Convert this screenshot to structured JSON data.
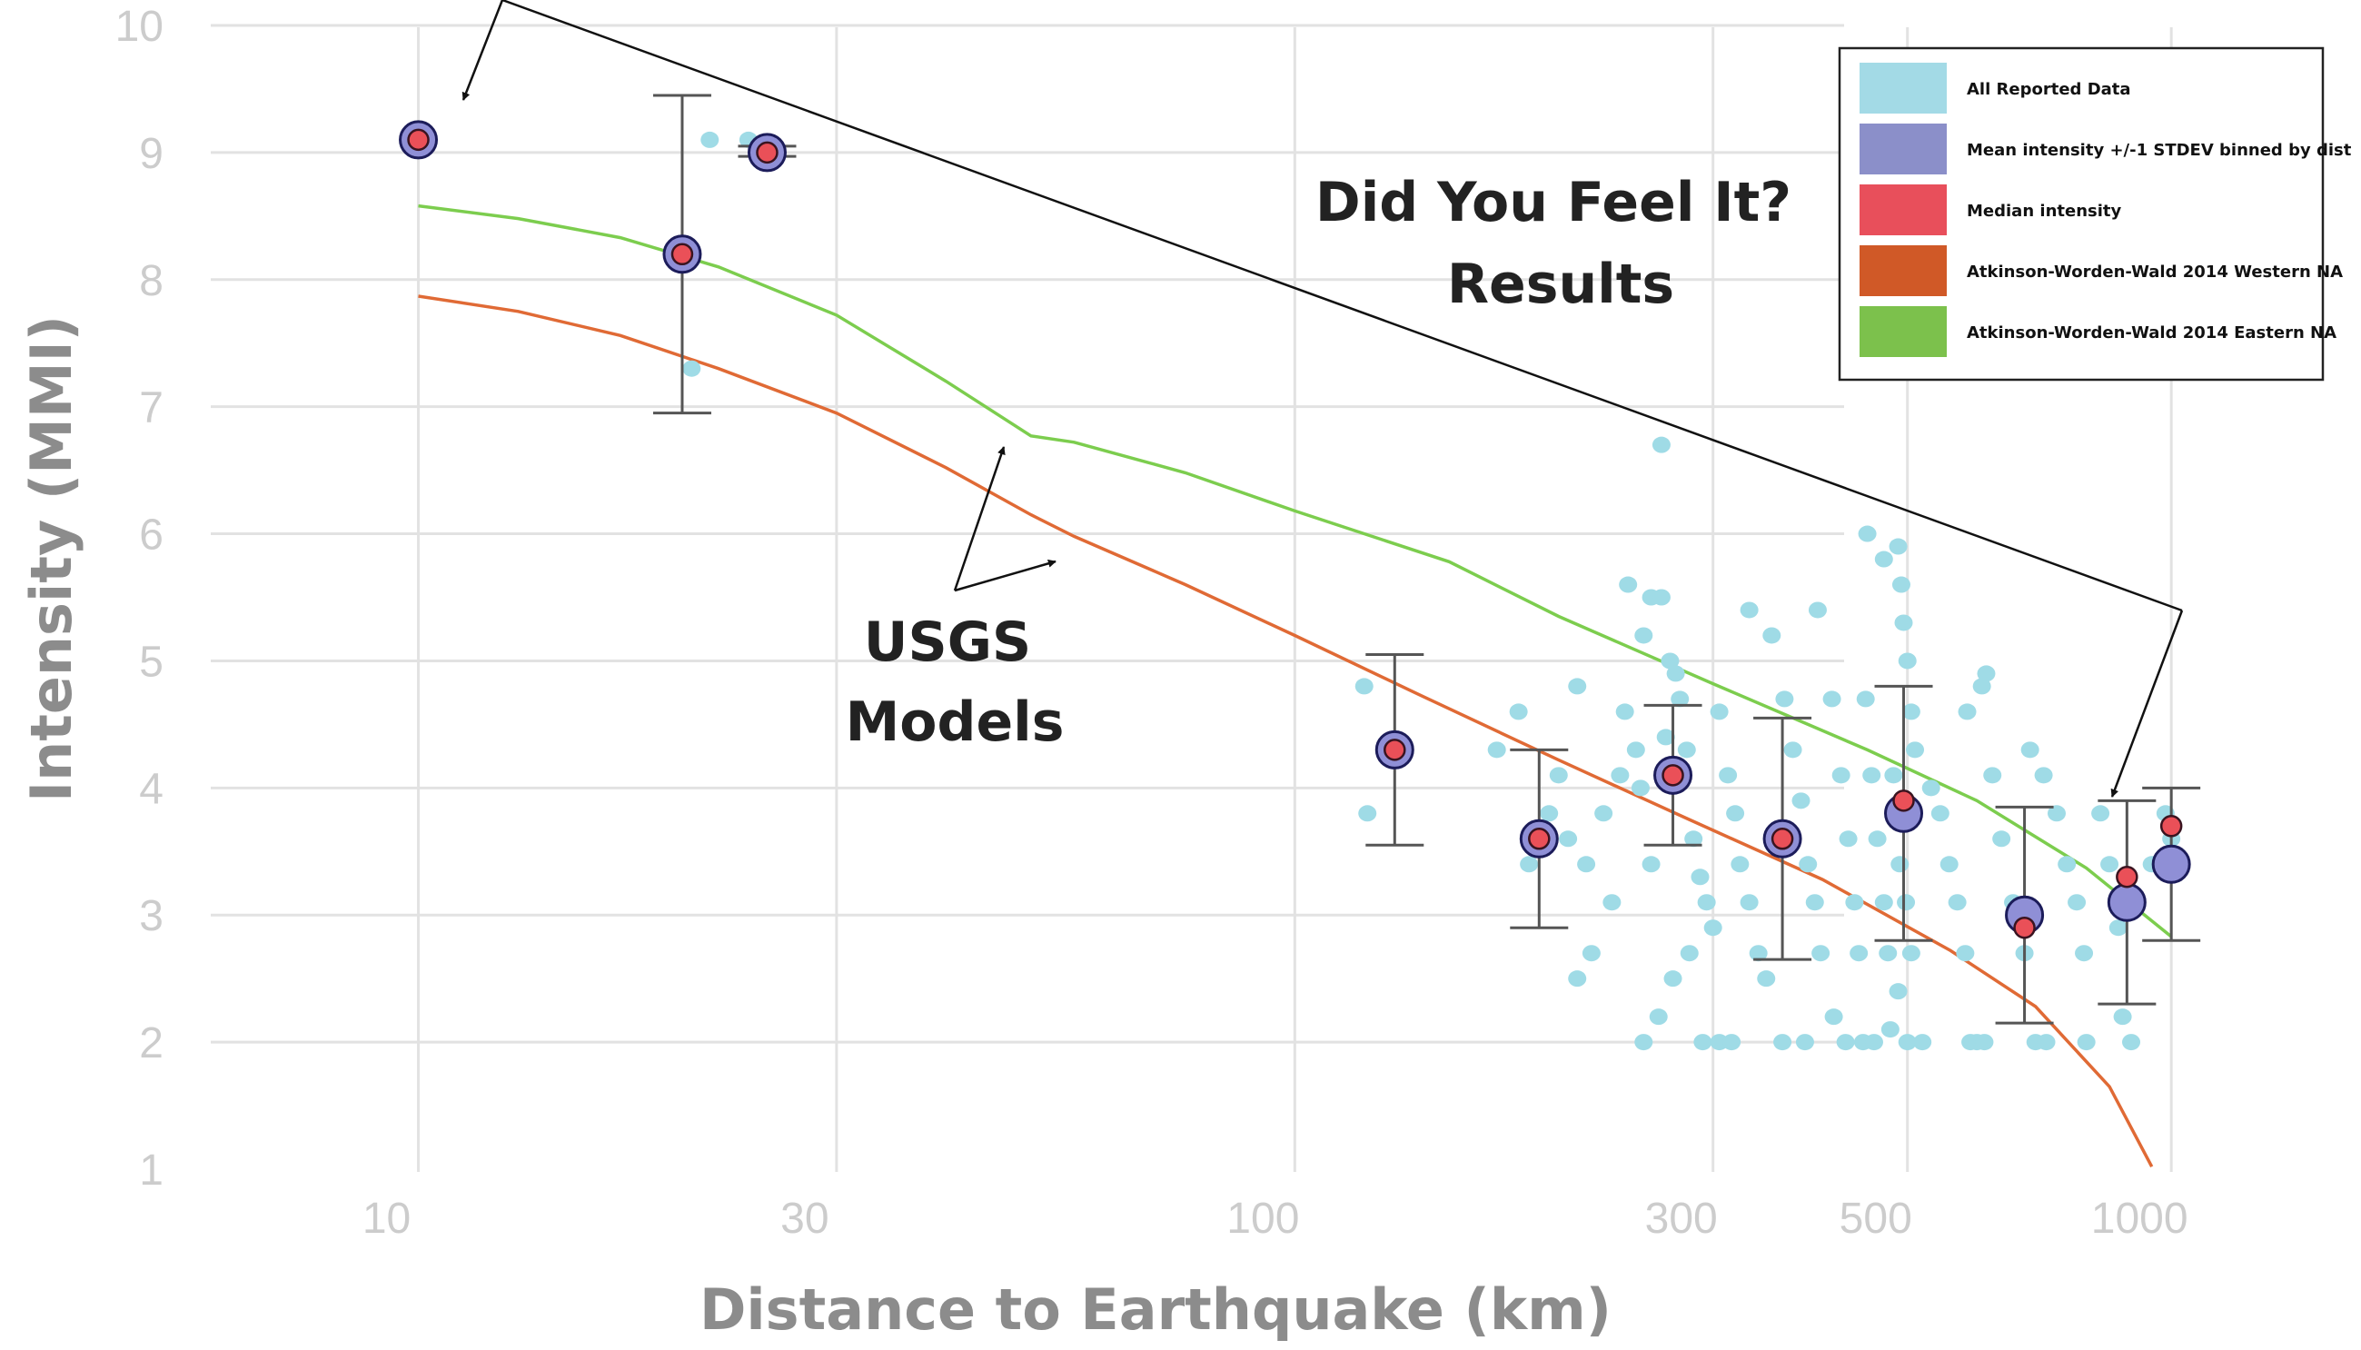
{
  "chart_data": {
    "type": "scatter",
    "title": "",
    "xlabel": "Distance to Earthquake (km)",
    "ylabel": "Intensity (MMI)",
    "x_scale": "log",
    "xlim": [
      5.7,
      1650
    ],
    "ylim": [
      1,
      10
    ],
    "xticks": [
      10,
      30,
      100,
      300,
      500,
      1000
    ],
    "xtick_labels": [
      "10",
      "30",
      "100",
      "300",
      "500",
      "1000"
    ],
    "yticks": [
      1,
      2,
      3,
      4,
      5,
      6,
      7,
      8,
      9,
      10
    ],
    "ytick_labels": [
      "1",
      "2",
      "3",
      "4",
      "5",
      "6",
      "7",
      "8",
      "9",
      "10"
    ],
    "grid": true,
    "legend_position": "top-right",
    "colors": {
      "all_reported": "#9fdbe6",
      "mean": "#8f8fd6",
      "median": "#ea5058",
      "western": "#e06a35",
      "eastern": "#7ccd4e",
      "legend_all_reported": "#a3dae6",
      "legend_mean": "#8b8fc9",
      "legend_median": "#e84f5b",
      "legend_western": "#d05927",
      "legend_eastern": "#7cc14c"
    },
    "legend": [
      {
        "label": "All Reported Data",
        "series": "all_reported"
      },
      {
        "label": "Mean intensity +/-1 STDEV binned by dist",
        "series": "mean"
      },
      {
        "label": "Median intensity",
        "series": "median"
      },
      {
        "label": "Atkinson-Worden-Wald 2014 Western NA",
        "series": "western"
      },
      {
        "label": "Atkinson-Worden-Wald 2014 Eastern NA",
        "series": "eastern"
      }
    ],
    "annotations": {
      "dyfi_line1": "Did You Feel It?",
      "dyfi_line2": "Results",
      "usgs_line1": "USGS",
      "usgs_line2": "Models"
    },
    "series": {
      "all_reported": {
        "name": "All Reported Data",
        "points": [
          [
            21.5,
            9.1
          ],
          [
            23.8,
            9.1
          ],
          [
            20.5,
            7.3
          ],
          [
            120,
            4.8
          ],
          [
            121,
            3.8
          ],
          [
            180,
            4.6
          ],
          [
            170,
            4.3
          ],
          [
            200,
            4.1
          ],
          [
            210,
            4.8
          ],
          [
            195,
            3.8
          ],
          [
            185,
            3.4
          ],
          [
            205,
            3.6
          ],
          [
            215,
            3.4
          ],
          [
            225,
            3.8
          ],
          [
            235,
            4.1
          ],
          [
            245,
            4.3
          ],
          [
            255,
            3.4
          ],
          [
            230,
            3.1
          ],
          [
            218,
            2.7
          ],
          [
            210,
            2.5
          ],
          [
            240,
            5.6
          ],
          [
            255,
            5.5
          ],
          [
            262,
            5.5
          ],
          [
            250,
            5.2
          ],
          [
            272,
            4.9
          ],
          [
            265,
            4.4
          ],
          [
            238,
            4.6
          ],
          [
            248,
            4.0
          ],
          [
            262,
            6.7
          ],
          [
            268,
            5.0
          ],
          [
            275,
            4.7
          ],
          [
            280,
            4.3
          ],
          [
            285,
            3.6
          ],
          [
            290,
            3.3
          ],
          [
            295,
            3.1
          ],
          [
            300,
            2.9
          ],
          [
            282,
            2.7
          ],
          [
            270,
            2.5
          ],
          [
            260,
            2.2
          ],
          [
            250,
            2.0
          ],
          [
            292,
            2.0
          ],
          [
            305,
            2.0
          ],
          [
            315,
            2.0
          ],
          [
            305,
            4.6
          ],
          [
            312,
            4.1
          ],
          [
            318,
            3.8
          ],
          [
            322,
            3.4
          ],
          [
            330,
            3.1
          ],
          [
            338,
            2.7
          ],
          [
            345,
            2.5
          ],
          [
            350,
            5.2
          ],
          [
            362,
            4.7
          ],
          [
            370,
            4.3
          ],
          [
            378,
            3.9
          ],
          [
            385,
            3.4
          ],
          [
            392,
            3.1
          ],
          [
            398,
            2.7
          ],
          [
            360,
            2.0
          ],
          [
            382,
            2.0
          ],
          [
            330,
            5.4
          ],
          [
            395,
            5.4
          ],
          [
            410,
            4.7
          ],
          [
            420,
            4.1
          ],
          [
            428,
            3.6
          ],
          [
            435,
            3.1
          ],
          [
            440,
            2.7
          ],
          [
            412,
            2.2
          ],
          [
            425,
            2.0
          ],
          [
            445,
            2.0
          ],
          [
            458,
            2.0
          ],
          [
            448,
            4.7
          ],
          [
            455,
            4.1
          ],
          [
            462,
            3.6
          ],
          [
            470,
            3.1
          ],
          [
            475,
            2.7
          ],
          [
            450,
            6.0
          ],
          [
            470,
            5.8
          ],
          [
            488,
            5.9
          ],
          [
            492,
            5.6
          ],
          [
            495,
            5.3
          ],
          [
            500,
            5.0
          ],
          [
            505,
            4.6
          ],
          [
            510,
            4.3
          ],
          [
            482,
            4.1
          ],
          [
            490,
            3.4
          ],
          [
            498,
            3.1
          ],
          [
            505,
            2.7
          ],
          [
            488,
            2.4
          ],
          [
            478,
            2.1
          ],
          [
            500,
            2.0
          ],
          [
            520,
            2.0
          ],
          [
            532,
            4.0
          ],
          [
            545,
            3.8
          ],
          [
            558,
            3.4
          ],
          [
            570,
            3.1
          ],
          [
            582,
            2.7
          ],
          [
            590,
            2.0
          ],
          [
            600,
            2.0
          ],
          [
            612,
            2.0
          ],
          [
            585,
            4.6
          ],
          [
            608,
            4.8
          ],
          [
            615,
            4.9
          ],
          [
            625,
            4.1
          ],
          [
            640,
            3.6
          ],
          [
            660,
            3.1
          ],
          [
            680,
            2.7
          ],
          [
            700,
            2.0
          ],
          [
            690,
            4.3
          ],
          [
            715,
            4.1
          ],
          [
            740,
            3.8
          ],
          [
            760,
            3.4
          ],
          [
            780,
            3.1
          ],
          [
            795,
            2.7
          ],
          [
            720,
            2.0
          ],
          [
            800,
            2.0
          ],
          [
            830,
            3.8
          ],
          [
            850,
            3.4
          ],
          [
            870,
            2.9
          ],
          [
            880,
            2.2
          ],
          [
            900,
            2.0
          ],
          [
            950,
            3.4
          ],
          [
            985,
            3.8
          ],
          [
            1000,
            3.6
          ]
        ]
      },
      "mean": {
        "name": "Mean intensity +/-1 STDEV binned by dist",
        "points": [
          {
            "x": 10,
            "y": 9.1,
            "sd_low": null,
            "sd_high": null
          },
          {
            "x": 20,
            "y": 8.2,
            "sd_low": 6.95,
            "sd_high": 9.45
          },
          {
            "x": 25,
            "y": 9.0,
            "sd_low": 8.97,
            "sd_high": 9.05
          },
          {
            "x": 130,
            "y": 4.3,
            "sd_low": 3.55,
            "sd_high": 5.05
          },
          {
            "x": 190,
            "y": 3.6,
            "sd_low": 2.9,
            "sd_high": 4.3
          },
          {
            "x": 270,
            "y": 4.1,
            "sd_low": 3.55,
            "sd_high": 4.65
          },
          {
            "x": 360,
            "y": 3.6,
            "sd_low": 2.65,
            "sd_high": 4.55
          },
          {
            "x": 495,
            "y": 3.8,
            "sd_low": 2.8,
            "sd_high": 4.8
          },
          {
            "x": 680,
            "y": 3.0,
            "sd_low": 2.15,
            "sd_high": 3.85
          },
          {
            "x": 890,
            "y": 3.1,
            "sd_low": 2.3,
            "sd_high": 3.9
          },
          {
            "x": 1000,
            "y": 3.4,
            "sd_low": 2.8,
            "sd_high": 4.0
          }
        ]
      },
      "median": {
        "name": "Median intensity",
        "points": [
          [
            10,
            9.1
          ],
          [
            20,
            8.2
          ],
          [
            25,
            9.0
          ],
          [
            130,
            4.3
          ],
          [
            190,
            3.6
          ],
          [
            270,
            4.1
          ],
          [
            360,
            3.6
          ],
          [
            495,
            3.9
          ],
          [
            680,
            2.9
          ],
          [
            890,
            3.3
          ],
          [
            1000,
            3.7
          ]
        ]
      },
      "western": {
        "name": "Atkinson-Worden-Wald 2014 Western NA",
        "points": [
          [
            10,
            7.87
          ],
          [
            13,
            7.75
          ],
          [
            17,
            7.56
          ],
          [
            22,
            7.3
          ],
          [
            30,
            6.95
          ],
          [
            40,
            6.52
          ],
          [
            50,
            6.15
          ],
          [
            56,
            5.98
          ],
          [
            75,
            5.6
          ],
          [
            100,
            5.2
          ],
          [
            140,
            4.72
          ],
          [
            200,
            4.22
          ],
          [
            280,
            3.76
          ],
          [
            400,
            3.28
          ],
          [
            560,
            2.72
          ],
          [
            700,
            2.28
          ],
          [
            850,
            1.65
          ],
          [
            950,
            1.02
          ]
        ]
      },
      "eastern": {
        "name": "Atkinson-Worden-Wald 2014 Eastern NA",
        "points": [
          [
            10,
            8.58
          ],
          [
            13,
            8.48
          ],
          [
            17,
            8.33
          ],
          [
            22,
            8.1
          ],
          [
            30,
            7.72
          ],
          [
            40,
            7.2
          ],
          [
            50,
            6.77
          ],
          [
            56,
            6.72
          ],
          [
            75,
            6.48
          ],
          [
            100,
            6.18
          ],
          [
            150,
            5.78
          ],
          [
            200,
            5.35
          ],
          [
            300,
            4.82
          ],
          [
            450,
            4.3
          ],
          [
            600,
            3.9
          ],
          [
            800,
            3.37
          ],
          [
            1000,
            2.83
          ]
        ]
      }
    }
  }
}
